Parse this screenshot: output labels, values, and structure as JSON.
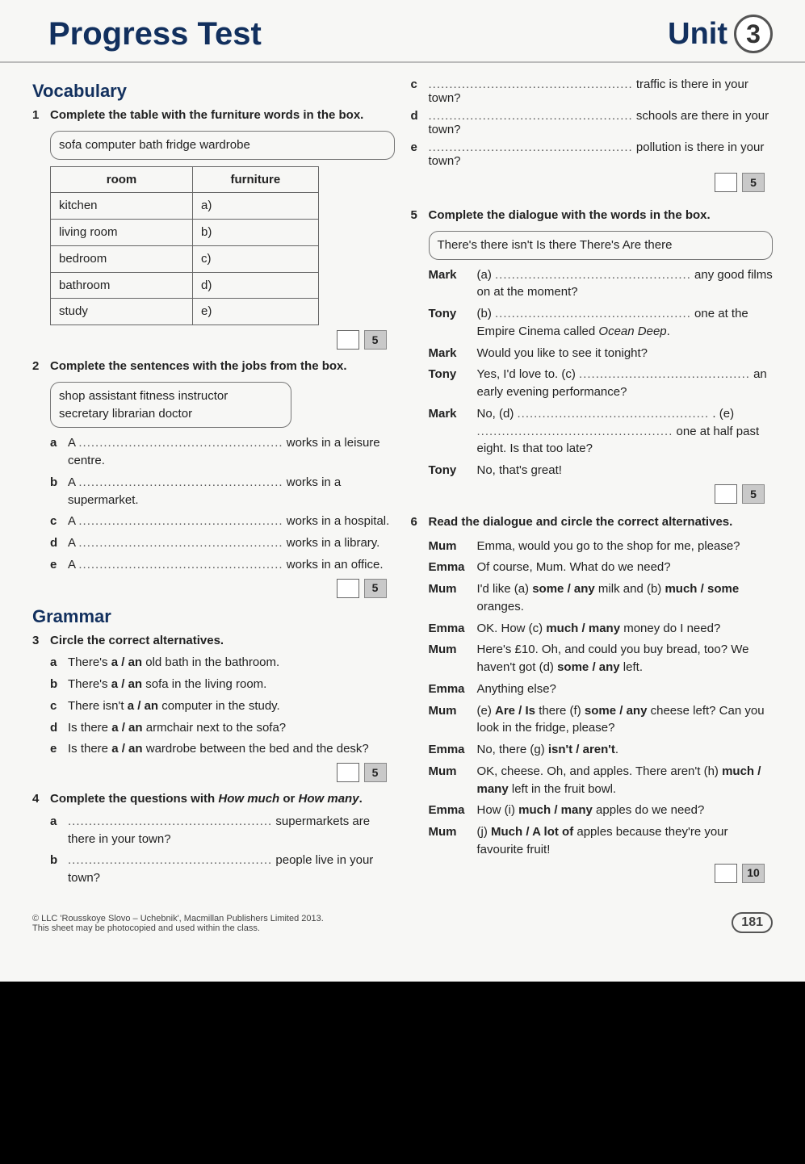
{
  "header": {
    "title": "Progress Test",
    "unit_label": "Unit",
    "unit_number": "3"
  },
  "left": {
    "vocab_heading": "Vocabulary",
    "grammar_heading": "Grammar",
    "ex1": {
      "num": "1",
      "instr": "Complete the table with the furniture words in the box.",
      "box": "sofa   computer   bath   fridge   wardrobe",
      "th_room": "room",
      "th_furn": "furniture",
      "rows": [
        {
          "room": "kitchen",
          "furn": "a)"
        },
        {
          "room": "living room",
          "furn": "b)"
        },
        {
          "room": "bedroom",
          "furn": "c)"
        },
        {
          "room": "bathroom",
          "furn": "d)"
        },
        {
          "room": "study",
          "furn": "e)"
        }
      ],
      "pts": "5"
    },
    "ex2": {
      "num": "2",
      "instr": "Complete the sentences with the jobs from the box.",
      "box": "shop assistant   fitness instructor\nsecretary   librarian   doctor",
      "items": [
        {
          "lt": "a",
          "pre": "A ",
          "post": " works in a leisure centre."
        },
        {
          "lt": "b",
          "pre": "A ",
          "post": " works in a supermarket."
        },
        {
          "lt": "c",
          "pre": "A ",
          "post": " works in a hospital."
        },
        {
          "lt": "d",
          "pre": "A ",
          "post": " works in a library."
        },
        {
          "lt": "e",
          "pre": "A ",
          "post": " works in an office."
        }
      ],
      "pts": "5"
    },
    "ex3": {
      "num": "3",
      "instr": "Circle the correct alternatives.",
      "items": [
        {
          "lt": "a",
          "txt": "There's <b>a / an</b> old bath in the bathroom."
        },
        {
          "lt": "b",
          "txt": "There's <b>a / an</b> sofa in the living room."
        },
        {
          "lt": "c",
          "txt": "There isn't <b>a / an</b> computer in the study."
        },
        {
          "lt": "d",
          "txt": "Is there <b>a / an</b> armchair next to the sofa?"
        },
        {
          "lt": "e",
          "txt": "Is there <b>a / an</b> wardrobe between the bed and the desk?"
        }
      ],
      "pts": "5"
    },
    "ex4": {
      "num": "4",
      "instr_html": "Complete the questions with <i>How much</i> or <i>How many</i>.",
      "items": [
        {
          "lt": "a",
          "post": " supermarkets are there in your town?"
        },
        {
          "lt": "b",
          "post": " people live in your town?"
        }
      ]
    }
  },
  "right": {
    "ex4_cont": {
      "items": [
        {
          "lt": "c",
          "post": " traffic is there in your town?"
        },
        {
          "lt": "d",
          "post": " schools are there in your town?"
        },
        {
          "lt": "e",
          "post": " pollution is there in your town?"
        }
      ],
      "pts": "5"
    },
    "ex5": {
      "num": "5",
      "instr": "Complete the dialogue with the words in the box.",
      "box": "There's   there isn't   Is there   There's   Are there",
      "lines": [
        {
          "sp": "Mark",
          "html": "(a) <span class='dots'>...............................................</span> any good films on at the moment?"
        },
        {
          "sp": "Tony",
          "html": "(b) <span class='dots'>...............................................</span> one at the Empire Cinema called <em class='title'>Ocean Deep</em>."
        },
        {
          "sp": "Mark",
          "html": "Would you like to see it tonight?"
        },
        {
          "sp": "Tony",
          "html": "Yes, I'd love to. (c) <span class='dots'>.........................................</span> an early evening performance?"
        },
        {
          "sp": "Mark",
          "html": "No, (d) <span class='dots'>..............................................</span> . (e) <span class='dots'>...............................................</span> one at half past eight. Is that too late?"
        },
        {
          "sp": "Tony",
          "html": "No, that's great!"
        }
      ],
      "pts": "5"
    },
    "ex6": {
      "num": "6",
      "instr": "Read the dialogue and circle the correct alternatives.",
      "lines": [
        {
          "sp": "Mum",
          "html": "Emma, would you go to the shop for me, please?"
        },
        {
          "sp": "Emma",
          "html": "Of course, Mum. What do we need?"
        },
        {
          "sp": "Mum",
          "html": "I'd like (a) <b>some / any</b> milk and (b) <b>much / some</b> oranges."
        },
        {
          "sp": "Emma",
          "html": "OK. How (c) <b>much / many</b> money do I need?"
        },
        {
          "sp": "Mum",
          "html": "Here's £10. Oh, and could you buy bread, too? We haven't got (d) <b>some / any</b> left."
        },
        {
          "sp": "Emma",
          "html": "Anything else?"
        },
        {
          "sp": "Mum",
          "html": "(e) <b>Are / Is</b> there (f) <b>some / any</b> cheese left? Can you look in the fridge, please?"
        },
        {
          "sp": "Emma",
          "html": "No, there (g) <b>isn't / aren't</b>."
        },
        {
          "sp": "Mum",
          "html": "OK, cheese. Oh, and apples. There aren't (h) <b>much / many</b> left in the fruit bowl."
        },
        {
          "sp": "Emma",
          "html": "How (i) <b>much / many</b> apples do we need?"
        },
        {
          "sp": "Mum",
          "html": "(j) <b>Much / A lot of</b> apples because they're your favourite fruit!"
        }
      ],
      "pts": "10"
    }
  },
  "footer": {
    "copy1": "© LLC 'Rousskoye Slovo – Uchebnik', Macmillan Publishers Limited 2013.",
    "copy2": "This sheet may be photocopied and used within the class.",
    "page": "181"
  }
}
